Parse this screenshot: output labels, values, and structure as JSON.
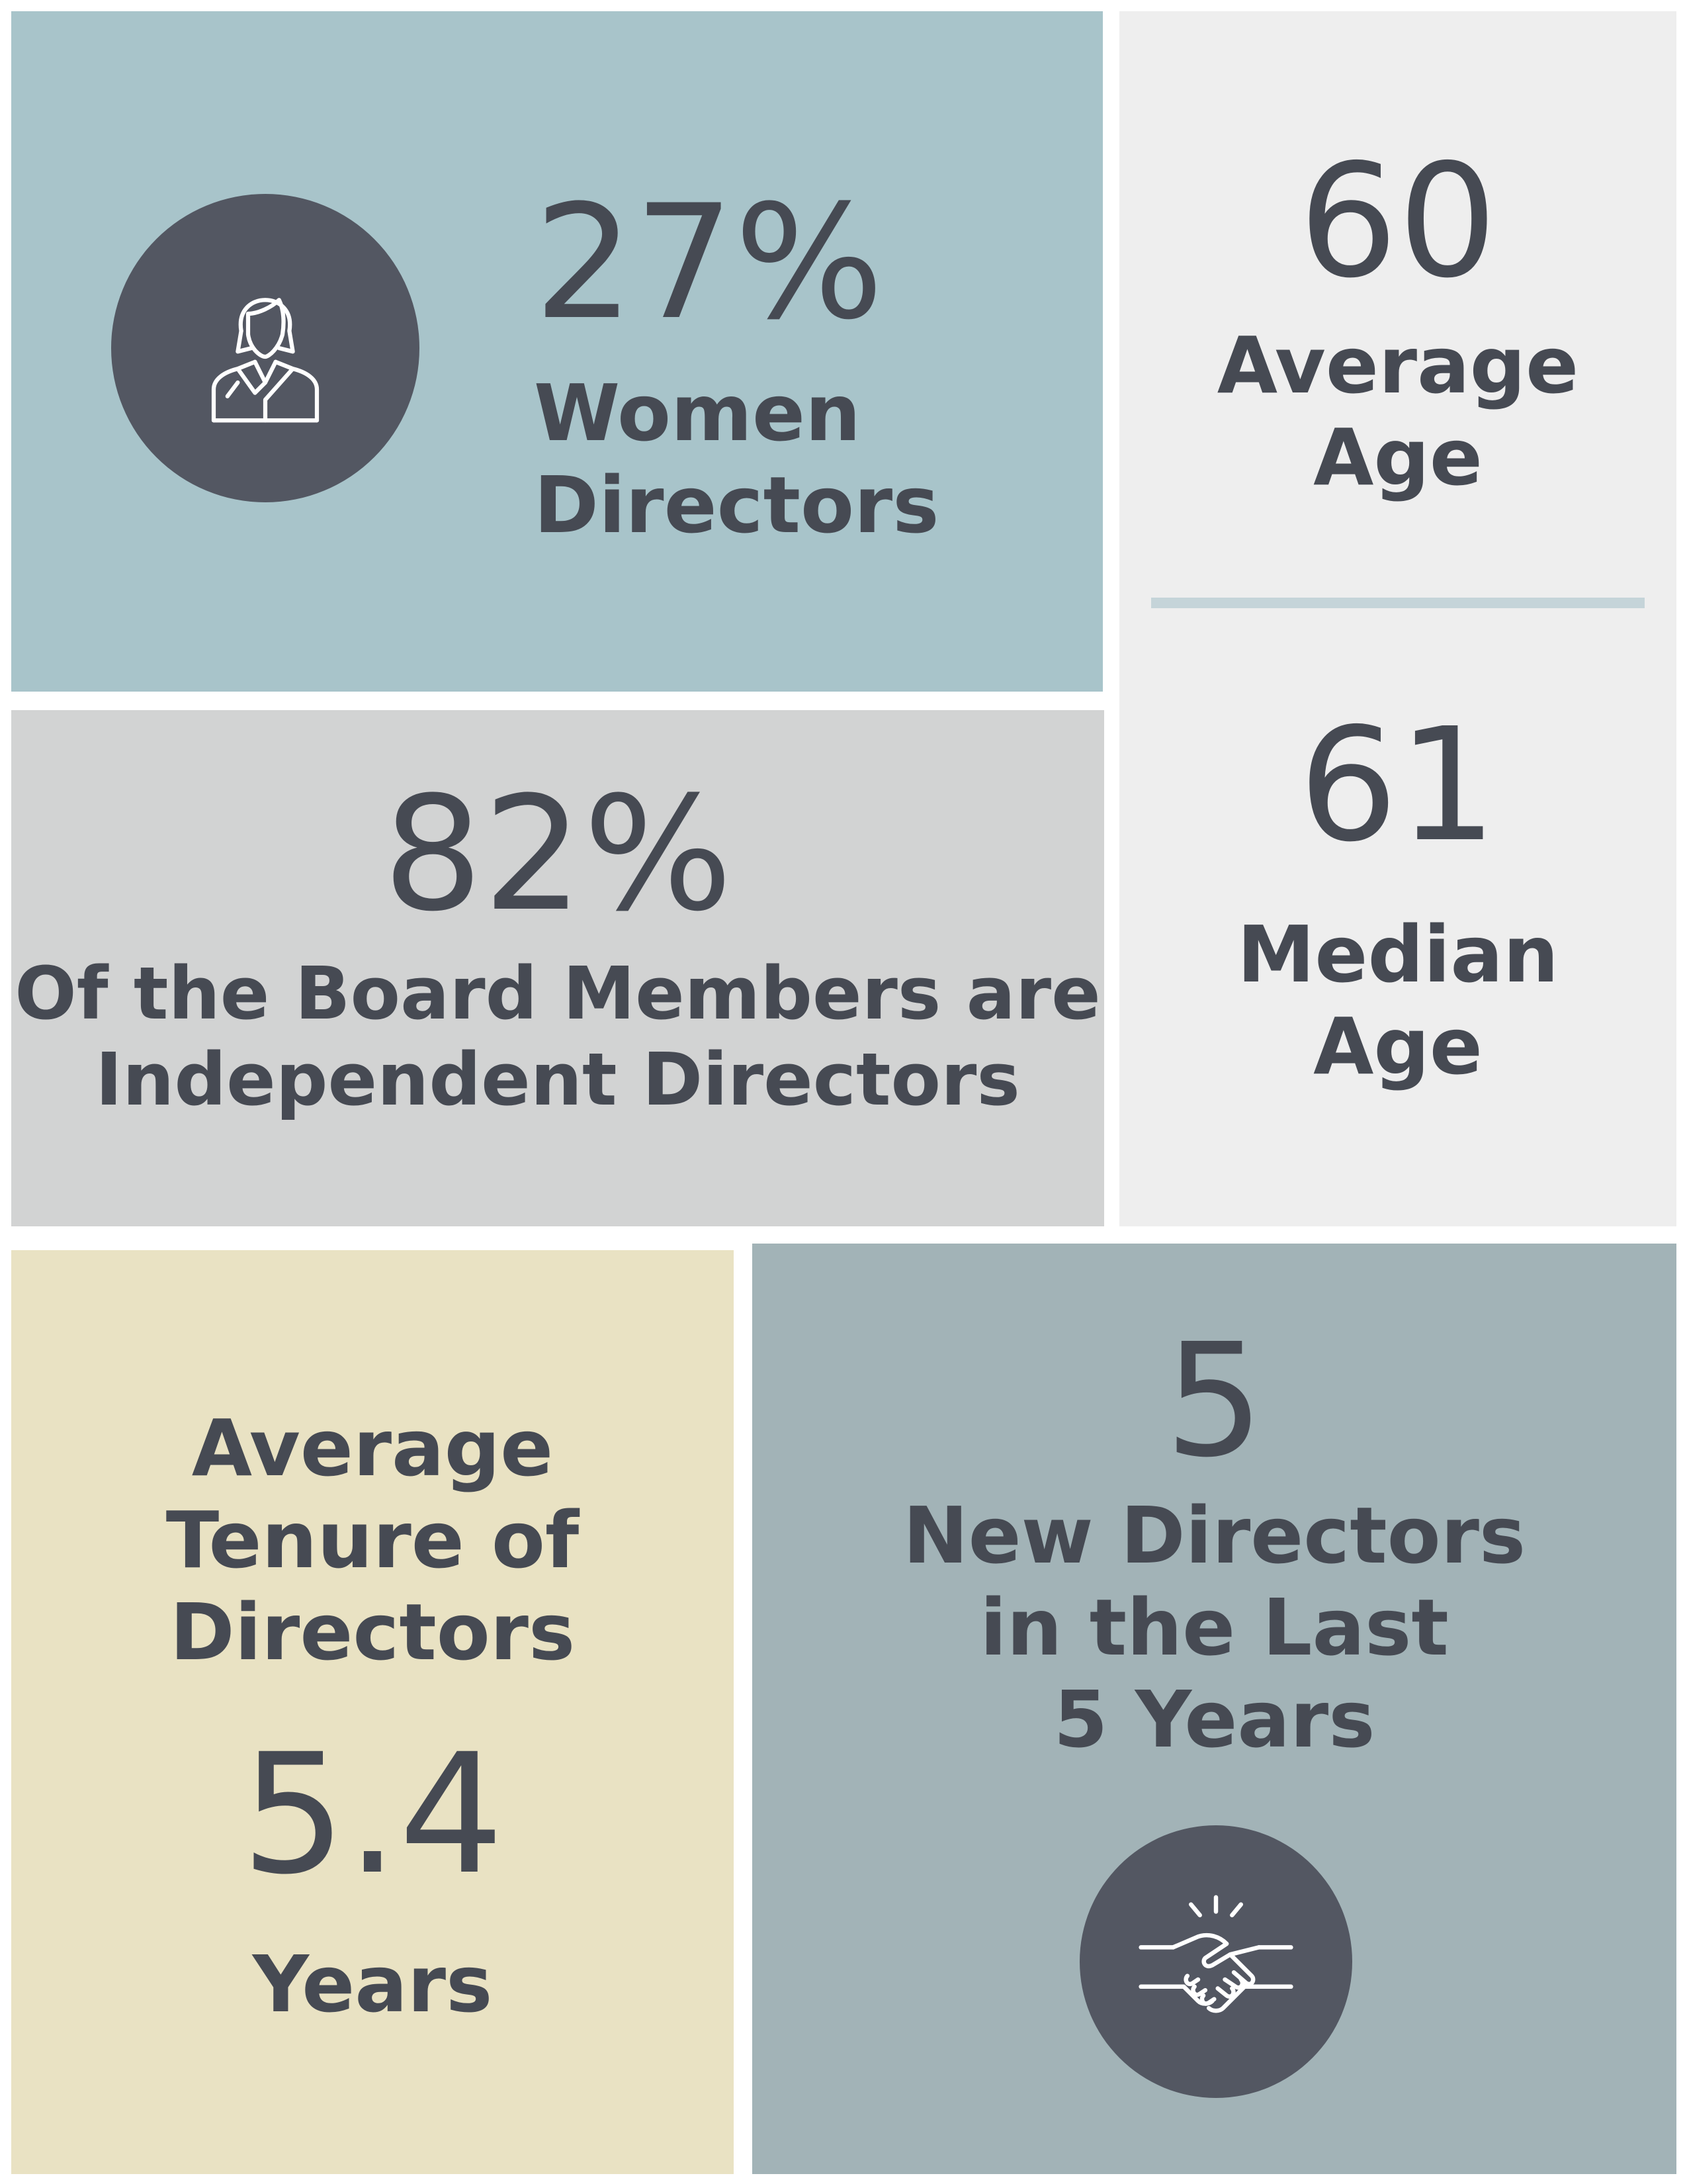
{
  "colors": {
    "dark": "#535762",
    "text": "#464a53",
    "women_tile": "#a8c4ca",
    "age_tile": "#eeeeee",
    "age_divider": "#c5d4d9",
    "independent_tile": "#d2d3d3",
    "tenure_tile": "#e9e2c3",
    "new_directors_tile": "#a2b3b7"
  },
  "women_directors": {
    "icon": "businesswoman-icon",
    "value": "27%",
    "label_line1": "Women",
    "label_line2": "Directors"
  },
  "average_age": {
    "value": "60",
    "label_line1": "Average",
    "label_line2": "Age"
  },
  "median_age": {
    "value": "61",
    "label_line1": "Median",
    "label_line2": "Age"
  },
  "independent_directors": {
    "value": "82%",
    "label_line1": "Of the Board Members are",
    "label_line2": "Independent Directors"
  },
  "average_tenure": {
    "label_line1": "Average",
    "label_line2": "Tenure of",
    "label_line3": "Directors",
    "value": "5.4",
    "unit": "Years"
  },
  "new_directors": {
    "value": "5",
    "label_line1": "New Directors",
    "label_line2": "in the Last",
    "label_line3": "5 Years",
    "icon": "handshake-icon"
  }
}
